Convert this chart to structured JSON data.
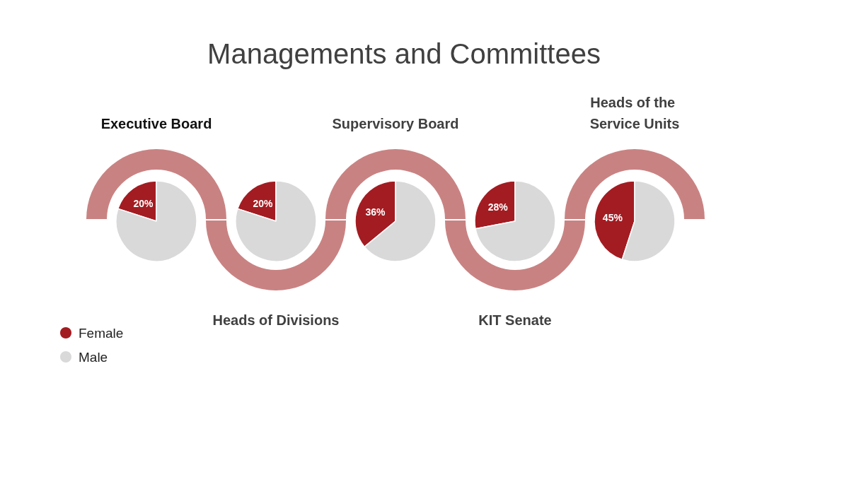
{
  "chart_data": {
    "type": "pie",
    "title": "Managements and Committees",
    "categories": [
      "Female",
      "Male"
    ],
    "colors": [
      "#a31c22",
      "#d9d9d9"
    ],
    "legend": "bottom left",
    "series": [
      {
        "name": "Executive Board",
        "values": [
          20,
          80
        ],
        "value_labels": [
          "20%",
          null
        ]
      },
      {
        "name": "Heads of Divisions",
        "values": [
          20,
          80
        ],
        "value_labels": [
          "20%",
          null
        ]
      },
      {
        "name": "Supervisory Board",
        "values": [
          36,
          64
        ],
        "value_labels": [
          "36%",
          null
        ]
      },
      {
        "name": "KIT Senate",
        "values": [
          28,
          72
        ],
        "value_labels": [
          "28%",
          null
        ]
      },
      {
        "name": "Heads of the Service Units",
        "values": [
          45,
          55
        ],
        "value_labels": [
          "45%",
          null
        ]
      }
    ]
  }
}
